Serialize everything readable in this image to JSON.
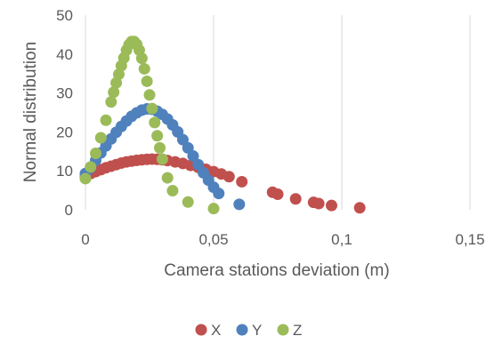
{
  "chart_data": {
    "type": "scatter",
    "xlabel": "Camera stations deviation (m)",
    "ylabel": "Normal distribution",
    "xlim": [
      0,
      0.15
    ],
    "ylim": [
      0,
      50
    ],
    "x_ticks": [
      0,
      0.05,
      0.1,
      0.15
    ],
    "x_tick_labels": [
      "0",
      "0,05",
      "0,1",
      "0,15"
    ],
    "y_ticks": [
      0,
      10,
      20,
      30,
      40,
      50
    ],
    "y_tick_labels": [
      "0",
      "10",
      "20",
      "30",
      "40",
      "50"
    ],
    "grid": "vertical",
    "legend_position": "bottom",
    "series": [
      {
        "name": "X",
        "color": "#c0504d",
        "points": [
          [
            0.0,
            8.6
          ],
          [
            0.002,
            9.3
          ],
          [
            0.004,
            9.8
          ],
          [
            0.006,
            10.3
          ],
          [
            0.008,
            10.8
          ],
          [
            0.01,
            11.2
          ],
          [
            0.012,
            11.6
          ],
          [
            0.014,
            12.0
          ],
          [
            0.016,
            12.3
          ],
          [
            0.018,
            12.5
          ],
          [
            0.02,
            12.7
          ],
          [
            0.022,
            12.85
          ],
          [
            0.024,
            12.95
          ],
          [
            0.026,
            13.0
          ],
          [
            0.028,
            12.95
          ],
          [
            0.03,
            12.85
          ],
          [
            0.032,
            12.65
          ],
          [
            0.035,
            12.3
          ],
          [
            0.038,
            11.9
          ],
          [
            0.041,
            11.4
          ],
          [
            0.044,
            10.9
          ],
          [
            0.047,
            10.4
          ],
          [
            0.05,
            9.8
          ],
          [
            0.053,
            9.2
          ],
          [
            0.056,
            8.5
          ],
          [
            0.061,
            7.2
          ],
          [
            0.073,
            4.5
          ],
          [
            0.075,
            4.0
          ],
          [
            0.082,
            2.8
          ],
          [
            0.089,
            1.9
          ],
          [
            0.091,
            1.6
          ],
          [
            0.096,
            1.1
          ],
          [
            0.107,
            0.5
          ]
        ]
      },
      {
        "name": "Y",
        "color": "#4f81bd",
        "points": [
          [
            0.0,
            9.3
          ],
          [
            0.002,
            10.8
          ],
          [
            0.004,
            12.7
          ],
          [
            0.006,
            14.6
          ],
          [
            0.008,
            16.4
          ],
          [
            0.01,
            18.2
          ],
          [
            0.012,
            19.9
          ],
          [
            0.014,
            21.4
          ],
          [
            0.016,
            22.8
          ],
          [
            0.018,
            24.0
          ],
          [
            0.02,
            24.9
          ],
          [
            0.022,
            25.6
          ],
          [
            0.024,
            25.9
          ],
          [
            0.026,
            25.8
          ],
          [
            0.028,
            25.3
          ],
          [
            0.03,
            24.5
          ],
          [
            0.032,
            23.3
          ],
          [
            0.034,
            21.8
          ],
          [
            0.036,
            20.0
          ],
          [
            0.038,
            18.0
          ],
          [
            0.04,
            15.9
          ],
          [
            0.042,
            13.8
          ],
          [
            0.044,
            11.6
          ],
          [
            0.046,
            9.5
          ],
          [
            0.048,
            7.6
          ],
          [
            0.05,
            5.8
          ],
          [
            0.052,
            4.2
          ],
          [
            0.06,
            1.4
          ]
        ]
      },
      {
        "name": "Z",
        "color": "#9bbb59",
        "points": [
          [
            0.0,
            8.0
          ],
          [
            0.002,
            11.0
          ],
          [
            0.004,
            14.5
          ],
          [
            0.006,
            18.5
          ],
          [
            0.008,
            23.0
          ],
          [
            0.01,
            27.7
          ],
          [
            0.011,
            30.2
          ],
          [
            0.012,
            32.6
          ],
          [
            0.013,
            34.8
          ],
          [
            0.014,
            37.0
          ],
          [
            0.015,
            39.0
          ],
          [
            0.016,
            41.0
          ],
          [
            0.017,
            42.4
          ],
          [
            0.018,
            43.2
          ],
          [
            0.019,
            43.2
          ],
          [
            0.02,
            42.5
          ],
          [
            0.021,
            41.0
          ],
          [
            0.022,
            38.9
          ],
          [
            0.023,
            36.2
          ],
          [
            0.024,
            33.0
          ],
          [
            0.025,
            29.5
          ],
          [
            0.026,
            26.0
          ],
          [
            0.027,
            22.4
          ],
          [
            0.028,
            19.0
          ],
          [
            0.029,
            15.9
          ],
          [
            0.03,
            13.0
          ],
          [
            0.032,
            8.2
          ],
          [
            0.034,
            4.9
          ],
          [
            0.04,
            2.0
          ],
          [
            0.05,
            0.3
          ]
        ]
      }
    ]
  }
}
